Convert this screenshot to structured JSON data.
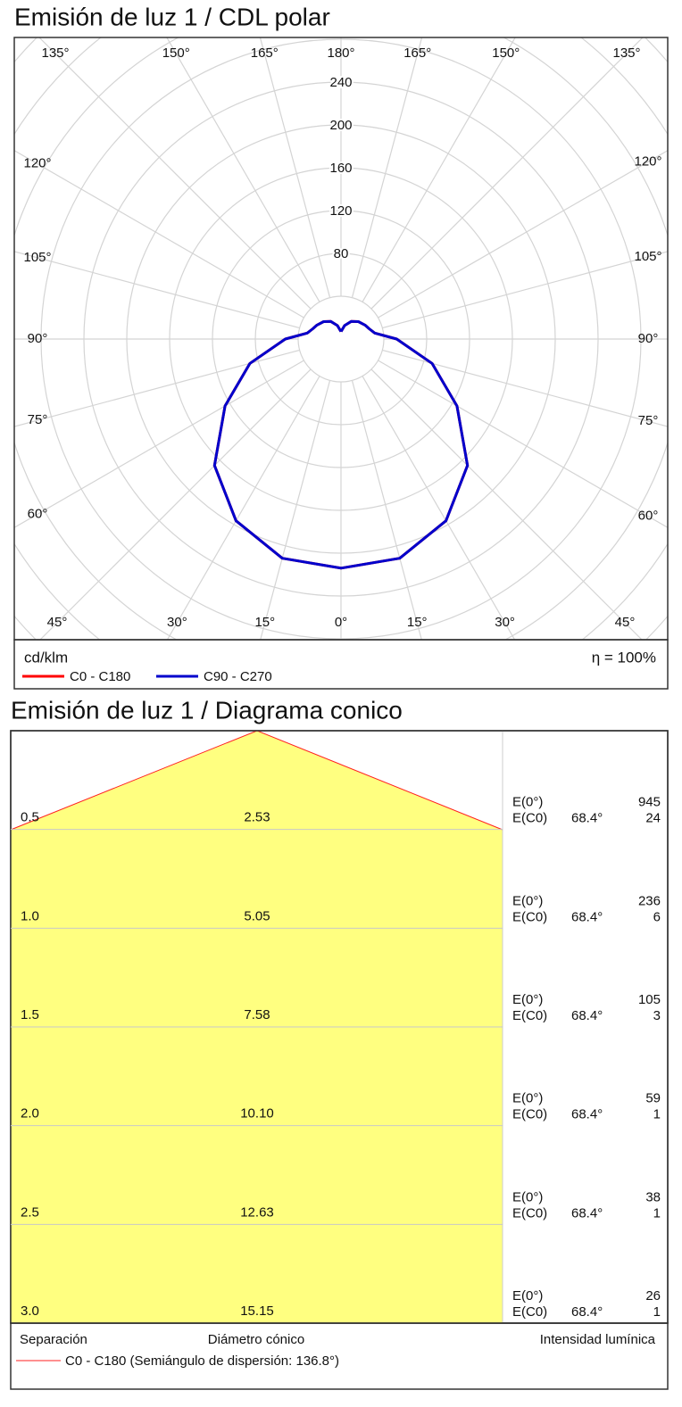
{
  "chart_data": {
    "type": "polar",
    "title": "Emisión de luz 1 / CDL polar",
    "unit": "cd/klm",
    "efficiency": "η = 100%",
    "angles": [
      -180,
      -175,
      -165,
      -150,
      -135,
      -120,
      -110,
      -100,
      -90,
      -75,
      -60,
      -45,
      -30,
      -15,
      0,
      15,
      30,
      45,
      60,
      75,
      90,
      100,
      110,
      120,
      135,
      150,
      165,
      175,
      180
    ],
    "series": [
      {
        "name": "C0 - C180",
        "color": "#ff0000",
        "values": [
          7,
          8,
          13,
          19,
          23,
          26,
          28,
          32,
          52,
          88,
          125,
          167,
          196,
          212,
          214,
          212,
          196,
          167,
          125,
          88,
          52,
          32,
          28,
          26,
          23,
          19,
          13,
          8,
          7
        ]
      },
      {
        "name": "C90 - C270",
        "color": "#0000cc",
        "values": [
          7,
          8,
          13,
          19,
          23,
          26,
          28,
          32,
          52,
          88,
          125,
          167,
          196,
          212,
          214,
          212,
          196,
          167,
          125,
          88,
          52,
          32,
          28,
          26,
          23,
          19,
          13,
          8,
          7
        ]
      }
    ],
    "rlim": [
      0,
      280
    ],
    "rticks": [
      80,
      120,
      160,
      200,
      240
    ],
    "angle_ticks": [
      {
        "value": -135,
        "label": "135°"
      },
      {
        "value": -150,
        "label": "150°"
      },
      {
        "value": -165,
        "label": "165°"
      },
      {
        "value": 180,
        "label": "180°"
      },
      {
        "value": 165,
        "label": "165°"
      },
      {
        "value": 150,
        "label": "150°"
      },
      {
        "value": 135,
        "label": "135°"
      },
      {
        "value": -120,
        "label": "120°"
      },
      {
        "value": -105,
        "label": "105°"
      },
      {
        "value": -90,
        "label": "90°"
      },
      {
        "value": -75,
        "label": "75°"
      },
      {
        "value": -60,
        "label": "60°"
      },
      {
        "value": 120,
        "label": "120°"
      },
      {
        "value": 105,
        "label": "105°"
      },
      {
        "value": 90,
        "label": "90°"
      },
      {
        "value": 75,
        "label": "75°"
      },
      {
        "value": 60,
        "label": "60°"
      },
      {
        "value": -45,
        "label": "45°"
      },
      {
        "value": -30,
        "label": "30°"
      },
      {
        "value": -15,
        "label": "15°"
      },
      {
        "value": 0,
        "label": "0°"
      },
      {
        "value": 15,
        "label": "15°"
      },
      {
        "value": 30,
        "label": "30°"
      },
      {
        "value": 45,
        "label": "45°"
      }
    ]
  },
  "cone_diagram": {
    "title": "Emisión de luz 1 / Diagrama conico",
    "rows": [
      {
        "separation": "0.5",
        "diameter": "2.53",
        "e0_label": "E(0°)",
        "e0": "945",
        "ec0_label": "E(C0)",
        "ec0_angle": "68.4°",
        "ec0": "24"
      },
      {
        "separation": "1.0",
        "diameter": "5.05",
        "e0_label": "E(0°)",
        "e0": "236",
        "ec0_label": "E(C0)",
        "ec0_angle": "68.4°",
        "ec0": "6"
      },
      {
        "separation": "1.5",
        "diameter": "7.58",
        "e0_label": "E(0°)",
        "e0": "105",
        "ec0_label": "E(C0)",
        "ec0_angle": "68.4°",
        "ec0": "3"
      },
      {
        "separation": "2.0",
        "diameter": "10.10",
        "e0_label": "E(0°)",
        "e0": "59",
        "ec0_label": "E(C0)",
        "ec0_angle": "68.4°",
        "ec0": "1"
      },
      {
        "separation": "2.5",
        "diameter": "12.63",
        "e0_label": "E(0°)",
        "e0": "38",
        "ec0_label": "E(C0)",
        "ec0_angle": "68.4°",
        "ec0": "1"
      },
      {
        "separation": "3.0",
        "diameter": "15.15",
        "e0_label": "E(0°)",
        "e0": "26",
        "ec0_label": "E(C0)",
        "ec0_angle": "68.4°",
        "ec0": "1"
      }
    ],
    "footer": {
      "separation": "Separación",
      "diameter": "Diámetro cónico",
      "intensity": "Intensidad lumínica",
      "legend": "C0 - C180 (Semiángulo de dispersión: 136.8°)"
    }
  }
}
